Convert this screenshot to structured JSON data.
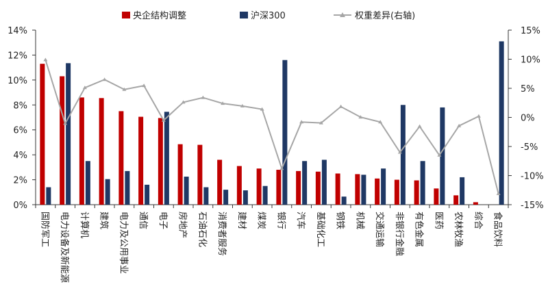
{
  "chart_data": {
    "type": "bar+line",
    "categories": [
      "国防军工",
      "电力设备及新能源",
      "计算机",
      "建筑",
      "电力及公用事业",
      "通信",
      "电子",
      "房地产",
      "石油石化",
      "消费者服务",
      "建材",
      "煤炭",
      "银行",
      "汽车",
      "基础化工",
      "钢铁",
      "机械",
      "交通运输",
      "非银行金融",
      "有色金属",
      "医药",
      "农林牧渔",
      "综合",
      "食品饮料"
    ],
    "series": [
      {
        "name": "央企结构调整",
        "type": "bar",
        "axis": "left",
        "color": "#C00000",
        "values": [
          11.3,
          10.3,
          8.6,
          8.55,
          7.5,
          7.05,
          6.95,
          4.85,
          4.8,
          3.6,
          3.1,
          2.9,
          2.8,
          2.7,
          2.65,
          2.5,
          2.45,
          2.1,
          2.0,
          1.95,
          1.3,
          0.75,
          0.2,
          0.0
        ]
      },
      {
        "name": "沪深300",
        "type": "bar",
        "axis": "left",
        "color": "#1F3864",
        "values": [
          1.4,
          11.35,
          3.5,
          2.05,
          2.7,
          1.6,
          7.45,
          2.25,
          1.4,
          1.2,
          1.15,
          1.5,
          11.6,
          3.5,
          3.6,
          0.65,
          2.4,
          2.9,
          8.0,
          3.5,
          7.8,
          2.2,
          0.0,
          13.1
        ]
      },
      {
        "name": "权重差异(右轴)",
        "type": "line",
        "axis": "right",
        "color": "#A6A6A6",
        "values": [
          9.9,
          -1.05,
          5.1,
          6.5,
          4.8,
          5.45,
          -0.5,
          2.6,
          3.4,
          2.4,
          1.95,
          1.4,
          -8.8,
          -0.8,
          -0.95,
          1.85,
          0.05,
          -0.8,
          -6.0,
          -1.55,
          -6.5,
          -1.45,
          0.2,
          -13.1
        ]
      }
    ],
    "left_axis": {
      "min": 0,
      "max": 14,
      "ticks": [
        "0%",
        "2%",
        "4%",
        "6%",
        "8%",
        "10%",
        "12%",
        "14%"
      ]
    },
    "right_axis": {
      "min": -15,
      "max": 15,
      "ticks": [
        "-15%",
        "-10%",
        "-5%",
        "0%",
        "5%",
        "10%",
        "15%"
      ]
    },
    "legend_position": "top",
    "grid": false
  }
}
